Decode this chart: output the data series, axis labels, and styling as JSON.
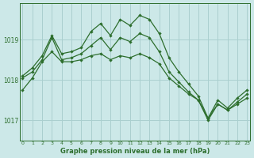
{
  "bg_color": "#cce8e8",
  "grid_color": "#aacfcf",
  "line_color": "#2d6e2d",
  "xlabel": "Graphe pression niveau de la mer (hPa)",
  "xticks": [
    0,
    1,
    2,
    3,
    4,
    5,
    6,
    7,
    8,
    9,
    10,
    11,
    12,
    13,
    14,
    15,
    16,
    17,
    18,
    19,
    20,
    21,
    22,
    23
  ],
  "yticks": [
    1017,
    1018,
    1019
  ],
  "ylim": [
    1016.5,
    1019.9
  ],
  "xlim": [
    -0.3,
    23.3
  ],
  "line1_x": [
    0,
    1,
    2,
    3,
    4,
    5,
    6,
    7,
    8,
    9,
    10,
    11,
    12,
    13,
    14,
    15,
    16,
    17,
    18,
    19,
    20,
    21,
    22,
    23
  ],
  "line1_y": [
    1018.1,
    1018.3,
    1018.6,
    1019.1,
    1018.65,
    1018.7,
    1018.8,
    1019.2,
    1019.4,
    1019.1,
    1019.5,
    1019.35,
    1019.6,
    1019.5,
    1019.15,
    1018.55,
    1018.2,
    1017.9,
    1017.6,
    1017.05,
    1017.5,
    1017.3,
    1017.55,
    1017.75
  ],
  "line2_x": [
    0,
    1,
    2,
    3,
    4,
    5,
    6,
    7,
    8,
    9,
    10,
    11,
    12,
    13,
    14,
    15,
    16,
    17,
    18,
    19,
    20,
    21,
    22,
    23
  ],
  "line2_y": [
    1018.05,
    1018.2,
    1018.5,
    1019.05,
    1018.5,
    1018.55,
    1018.65,
    1018.85,
    1019.05,
    1018.75,
    1019.05,
    1018.95,
    1019.15,
    1019.05,
    1018.7,
    1018.2,
    1017.95,
    1017.7,
    1017.5,
    1017.0,
    1017.4,
    1017.25,
    1017.45,
    1017.65
  ],
  "line3_x": [
    0,
    1,
    2,
    3,
    4,
    5,
    6,
    7,
    8,
    9,
    10,
    11,
    12,
    13,
    14,
    15,
    16,
    17,
    18,
    19,
    20,
    21,
    22,
    23
  ],
  "line3_y": [
    1017.75,
    1018.05,
    1018.45,
    1018.7,
    1018.45,
    1018.45,
    1018.5,
    1018.6,
    1018.65,
    1018.5,
    1018.6,
    1018.55,
    1018.65,
    1018.55,
    1018.4,
    1018.05,
    1017.85,
    1017.65,
    1017.5,
    1017.05,
    1017.4,
    1017.25,
    1017.4,
    1017.55
  ]
}
